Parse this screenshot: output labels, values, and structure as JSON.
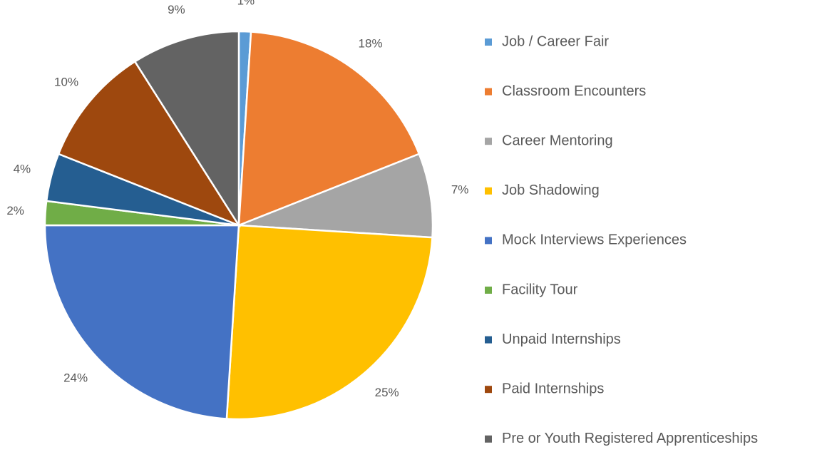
{
  "chart_data": {
    "type": "pie",
    "categories": [
      "Job / Career Fair",
      "Classroom Encounters",
      "Career Mentoring",
      "Job Shadowing",
      "Mock Interviews Experiences",
      "Facility Tour",
      "Unpaid Internships",
      "Paid Internships",
      "Pre or Youth Registered Apprenticeships"
    ],
    "values": [
      1,
      18,
      7,
      25,
      24,
      2,
      4,
      10,
      9
    ],
    "value_labels": [
      "1%",
      "18%",
      "7%",
      "25%",
      "24%",
      "2%",
      "4%",
      "10%",
      "9%"
    ],
    "colors": [
      "#5b9bd5",
      "#ed7d31",
      "#a5a5a5",
      "#ffc000",
      "#4472c4",
      "#70ad47",
      "#255e91",
      "#9e480e",
      "#636363"
    ],
    "legend": "right"
  }
}
